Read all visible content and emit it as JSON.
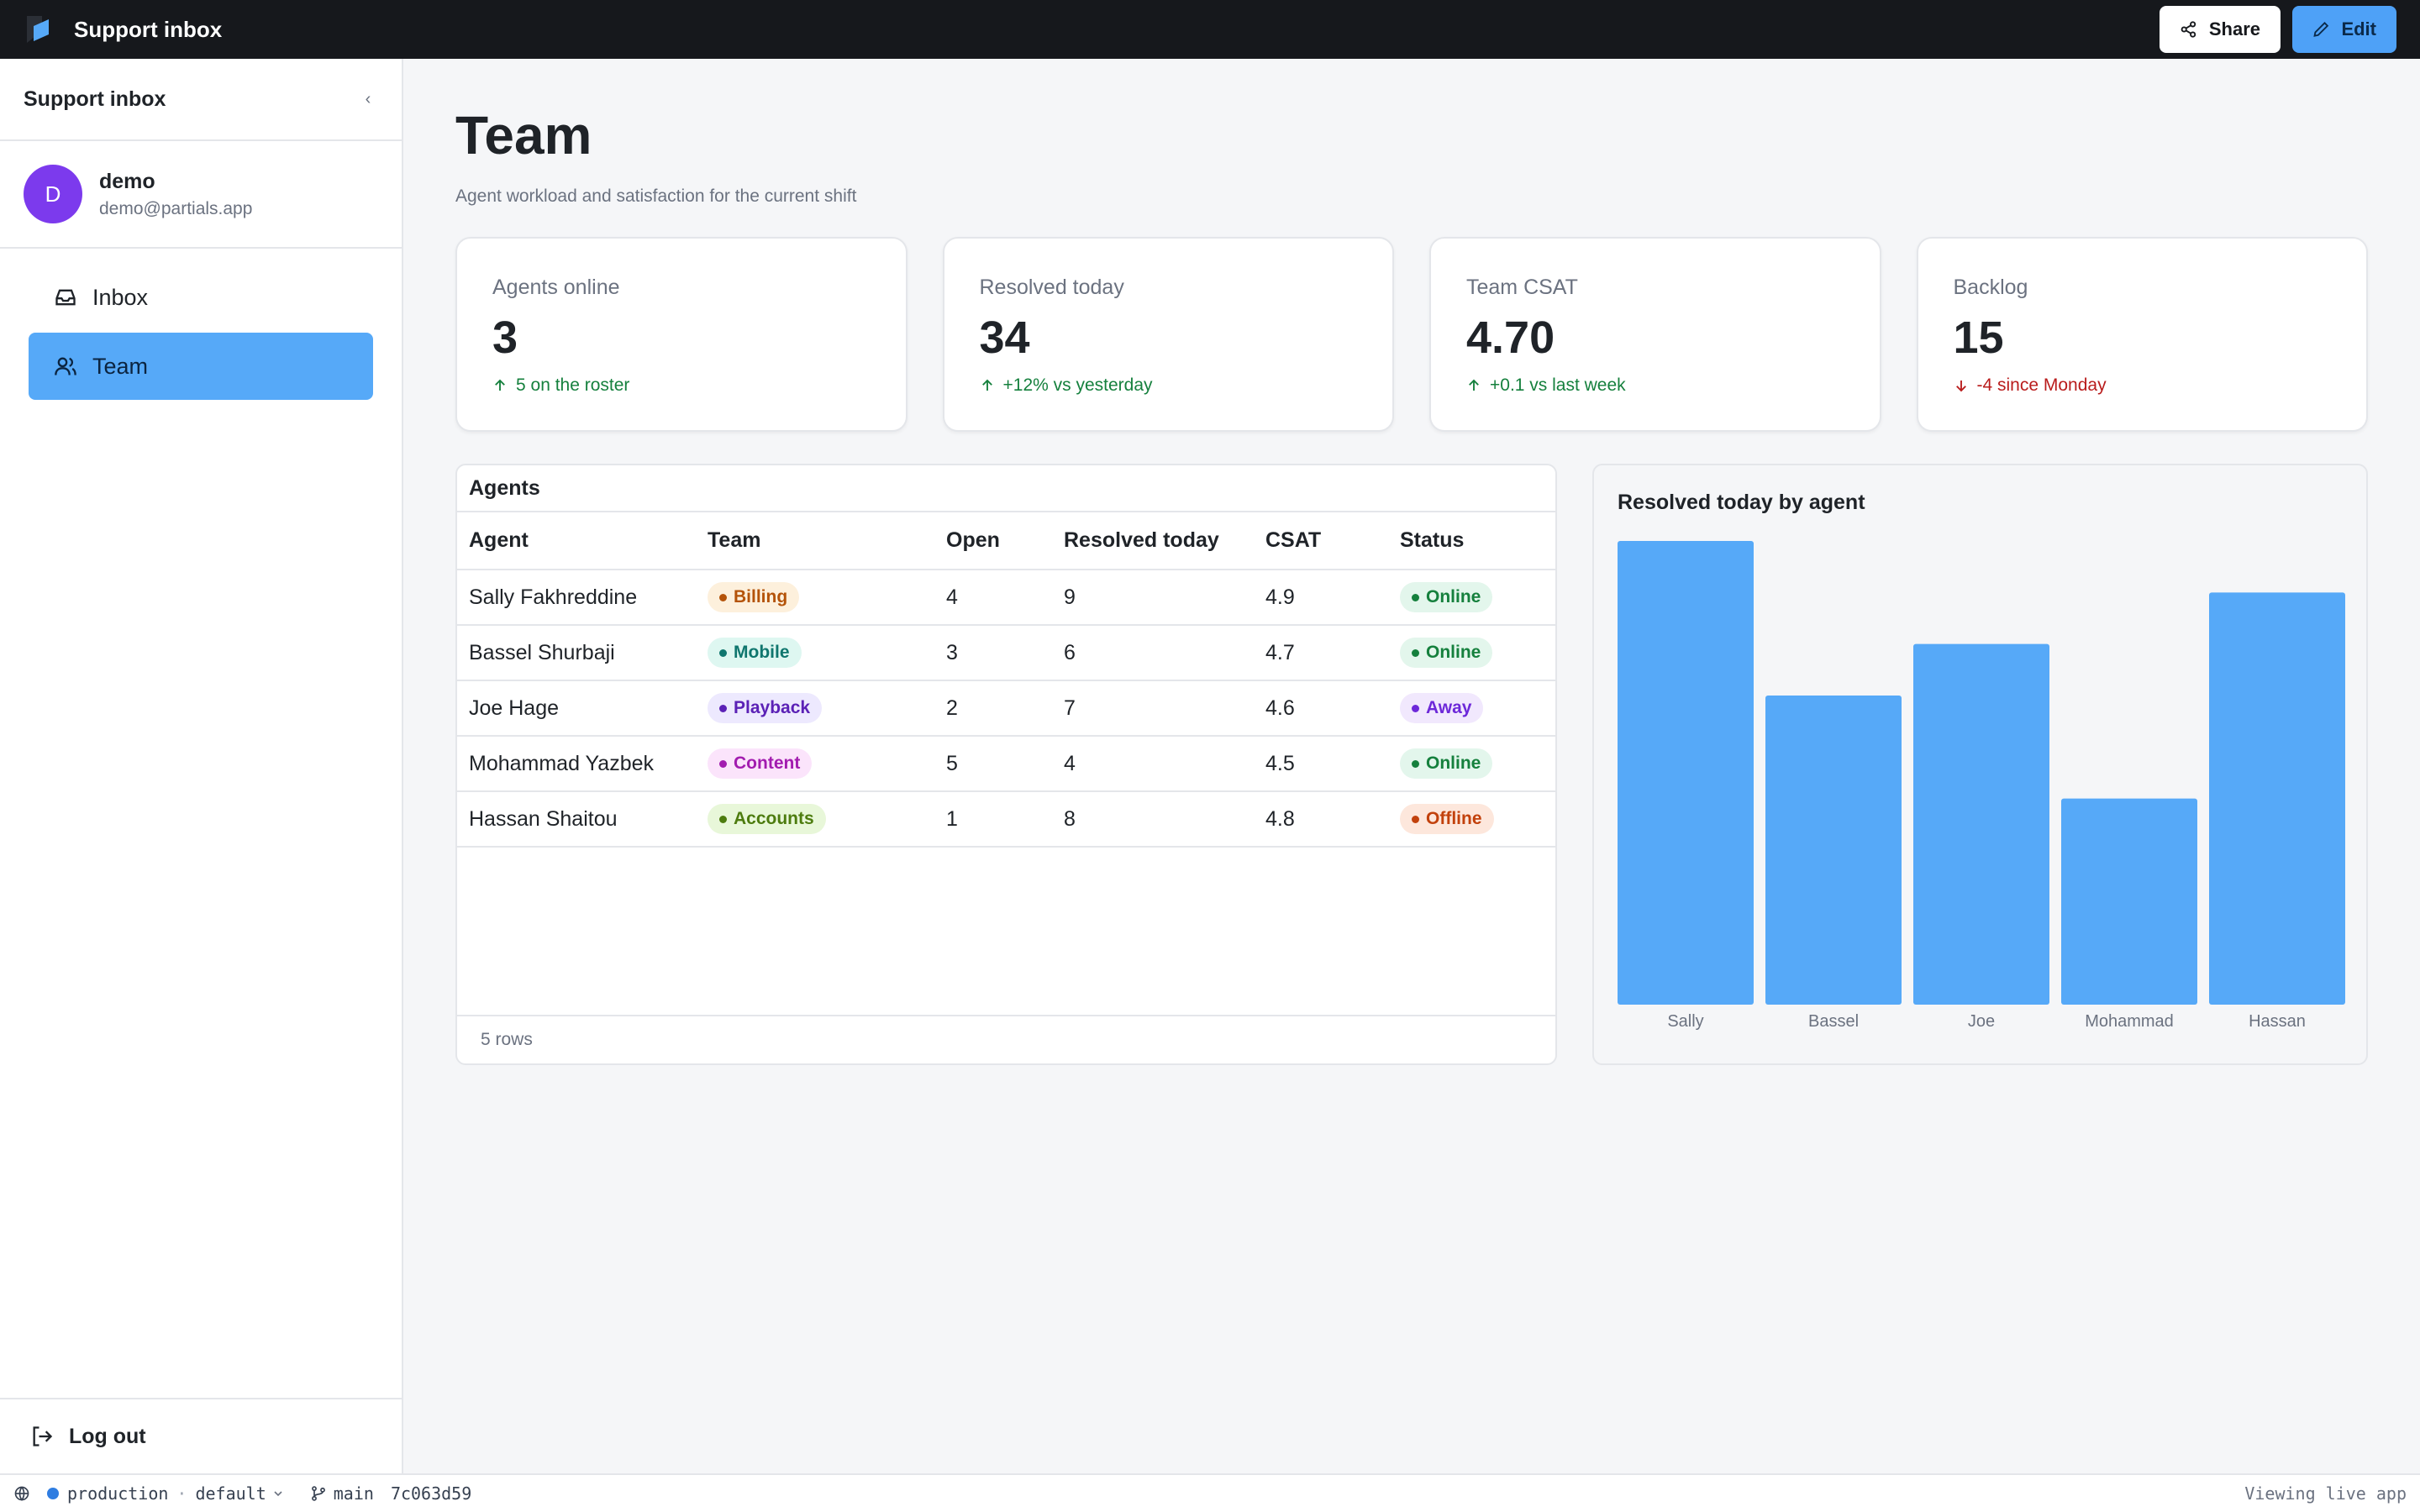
{
  "app": {
    "title": "Support inbox"
  },
  "topbar": {
    "share_label": "Share",
    "edit_label": "Edit"
  },
  "sidebar": {
    "title": "Support inbox",
    "collapse_glyph": "‹",
    "user": {
      "initial": "D",
      "name": "demo",
      "email": "demo@partials.app"
    },
    "items": [
      {
        "label": "Inbox",
        "icon": "inbox-icon"
      },
      {
        "label": "Team",
        "icon": "users-icon",
        "active": true
      }
    ],
    "logout_label": "Log out"
  },
  "status": {
    "env": "production",
    "separator": "·",
    "workspace": "default",
    "branch": "main",
    "commit": "7c063d59",
    "right": "Viewing live app"
  },
  "page": {
    "title": "Team",
    "subtitle": "Agent workload and satisfaction for the current shift"
  },
  "stats": [
    {
      "label": "Agents online",
      "value": "3",
      "delta": "5 on the roster",
      "dir": "up"
    },
    {
      "label": "Resolved today",
      "value": "34",
      "delta": "+12% vs yesterday",
      "dir": "up"
    },
    {
      "label": "Team CSAT",
      "value": "4.70",
      "delta": "+0.1 vs last week",
      "dir": "up"
    },
    {
      "label": "Backlog",
      "value": "15",
      "delta": "-4 since Monday",
      "dir": "down"
    }
  ],
  "agents_table": {
    "title": "Agents",
    "columns": [
      "Agent",
      "Team",
      "Open",
      "Resolved today",
      "CSAT",
      "Status"
    ],
    "rows": [
      {
        "agent": "Sally Fakhreddine",
        "team": "Billing",
        "open": "4",
        "resolved": "9",
        "csat": "4.9",
        "status": "Online"
      },
      {
        "agent": "Bassel Shurbaji",
        "team": "Mobile",
        "open": "3",
        "resolved": "6",
        "csat": "4.7",
        "status": "Online"
      },
      {
        "agent": "Joe Hage",
        "team": "Playback",
        "open": "2",
        "resolved": "7",
        "csat": "4.6",
        "status": "Away"
      },
      {
        "agent": "Mohammad Yazbek",
        "team": "Content",
        "open": "5",
        "resolved": "4",
        "csat": "4.5",
        "status": "Online"
      },
      {
        "agent": "Hassan Shaitou",
        "team": "Accounts",
        "open": "1",
        "resolved": "8",
        "csat": "4.8",
        "status": "Offline"
      }
    ],
    "footer": "5 rows"
  },
  "colors": {
    "accent": "#56a9f8",
    "bar": "#56a9f8",
    "team": {
      "Billing": {
        "bg": "#fdf0dc",
        "fg": "#b45309"
      },
      "Mobile": {
        "bg": "#def7f1",
        "fg": "#0f766e"
      },
      "Playback": {
        "bg": "#ede9fe",
        "fg": "#5b21b6"
      },
      "Content": {
        "bg": "#fbe4fb",
        "fg": "#a21caf"
      },
      "Accounts": {
        "bg": "#e8f7d9",
        "fg": "#4d7c0f"
      }
    },
    "status": {
      "Online": {
        "bg": "#e3f6ec",
        "fg": "#15803d"
      },
      "Away": {
        "bg": "#f1e8fd",
        "fg": "#6d28d9"
      },
      "Offline": {
        "bg": "#fde7dc",
        "fg": "#c2410c"
      }
    }
  },
  "chart_data": {
    "type": "bar",
    "title": "Resolved today by agent",
    "categories": [
      "Sally",
      "Bassel",
      "Joe",
      "Mohammad",
      "Hassan"
    ],
    "values": [
      9,
      6,
      7,
      4,
      8
    ],
    "ylim": [
      0,
      9
    ],
    "grid": false,
    "legend": "none"
  }
}
